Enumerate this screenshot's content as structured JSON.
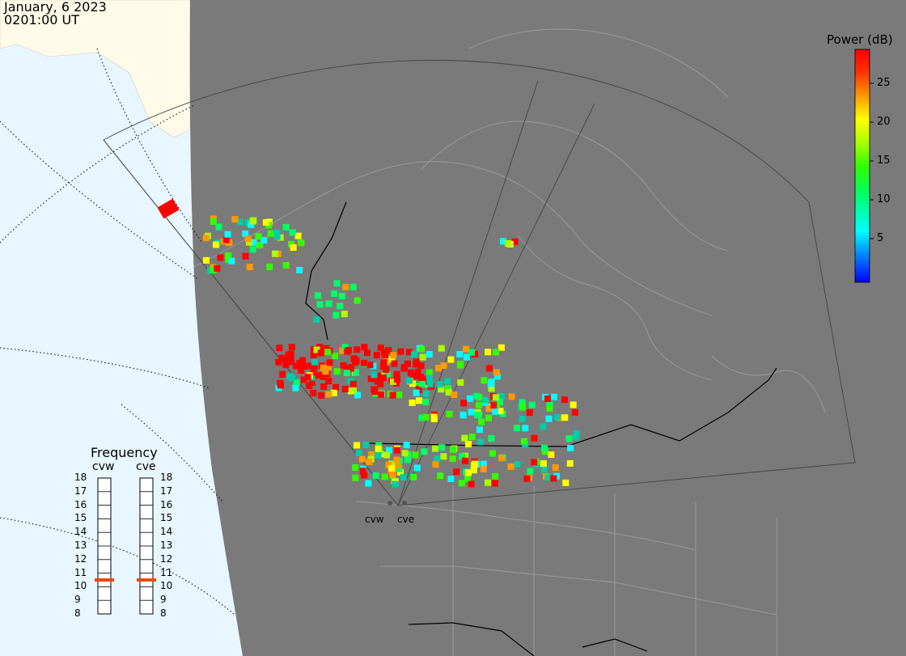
{
  "header": {
    "date": "January, 6 2023",
    "time": "0201:00 UT"
  },
  "colorbar": {
    "title": "Power (dB)",
    "ticks": [
      "25",
      "20",
      "15",
      "10",
      "5"
    ],
    "colors": [
      "#0000ff",
      "#0088ff",
      "#00ffff",
      "#00ff66",
      "#33ff00",
      "#aaff00",
      "#ffff00",
      "#ff9900",
      "#ff3300",
      "#ff0000"
    ]
  },
  "frequency": {
    "title": "Frequency",
    "radars": [
      "cvw",
      "cve"
    ],
    "scale": [
      "18",
      "17",
      "16",
      "15",
      "14",
      "13",
      "12",
      "11",
      "10",
      "9",
      "8"
    ],
    "cvw_mhz": 10.5,
    "cve_mhz": 10.5
  },
  "radar_sites": {
    "west": "cvw",
    "east": "cve"
  },
  "colors": {
    "ocean": "#e8f6ff",
    "land_lit": "#fffbe8",
    "night": "#7a7a7a",
    "marker": "#e84a10"
  }
}
